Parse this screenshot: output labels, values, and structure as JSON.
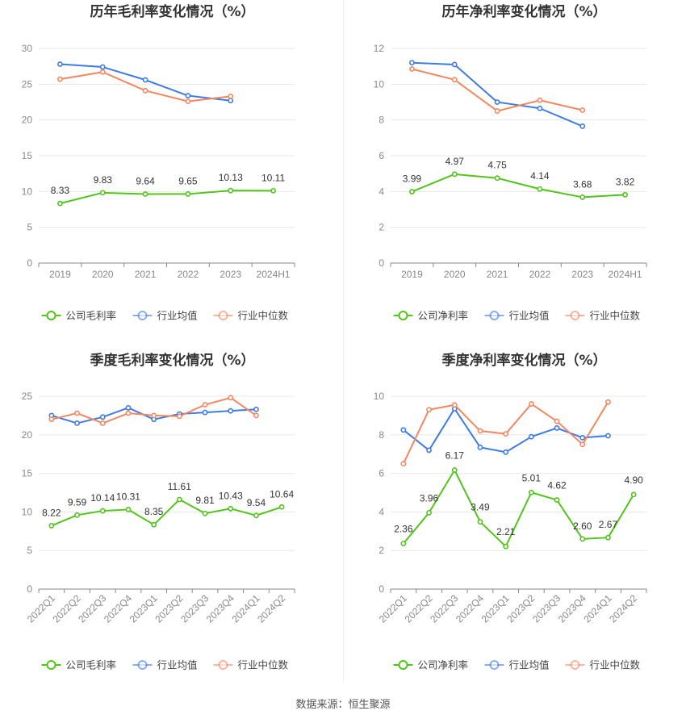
{
  "colors": {
    "company": "#52c41a",
    "industry_avg": "#3e7be6",
    "industry_median": "#f4875f"
  },
  "source_text": "数据来源：恒生聚源",
  "chart_data": [
    {
      "id": "annual-gross",
      "type": "line",
      "title": "历年毛利率变化情况（%）",
      "categories": [
        "2019",
        "2020",
        "2021",
        "2022",
        "2023",
        "2024H1"
      ],
      "ylim": [
        0,
        30
      ],
      "yticks": [
        0,
        5,
        10,
        15,
        20,
        25,
        30
      ],
      "grid": true,
      "legend_position": "bottom",
      "series": [
        {
          "name": "公司毛利率",
          "key": "company",
          "values": [
            8.33,
            9.83,
            9.64,
            9.65,
            10.13,
            10.11
          ],
          "labels": [
            "8.33",
            "9.83",
            "9.64",
            "9.65",
            "10.13",
            "10.11"
          ]
        },
        {
          "name": "行业均值",
          "key": "industry_avg",
          "values": [
            27.8,
            27.4,
            25.6,
            23.4,
            22.7,
            null
          ]
        },
        {
          "name": "行业中位数",
          "key": "industry_median",
          "values": [
            25.7,
            26.7,
            24.1,
            22.6,
            23.3,
            null
          ]
        }
      ]
    },
    {
      "id": "annual-net",
      "type": "line",
      "title": "历年净利率变化情况（%）",
      "categories": [
        "2019",
        "2020",
        "2021",
        "2022",
        "2023",
        "2024H1"
      ],
      "ylim": [
        0,
        12
      ],
      "yticks": [
        0,
        2,
        4,
        6,
        8,
        10,
        12
      ],
      "grid": true,
      "legend_position": "bottom",
      "series": [
        {
          "name": "公司净利率",
          "key": "company",
          "values": [
            3.99,
            4.97,
            4.75,
            4.14,
            3.68,
            3.82
          ],
          "labels": [
            "3.99",
            "4.97",
            "4.75",
            "4.14",
            "3.68",
            "3.82"
          ]
        },
        {
          "name": "行业均值",
          "key": "industry_avg",
          "values": [
            11.2,
            11.1,
            9.0,
            8.65,
            7.65,
            null
          ]
        },
        {
          "name": "行业中位数",
          "key": "industry_median",
          "values": [
            10.85,
            10.25,
            8.5,
            9.1,
            8.55,
            null
          ]
        }
      ]
    },
    {
      "id": "quarterly-gross",
      "type": "line",
      "title": "季度毛利率变化情况（%）",
      "categories": [
        "2022Q1",
        "2022Q2",
        "2022Q3",
        "2022Q4",
        "2023Q1",
        "2023Q2",
        "2023Q3",
        "2023Q4",
        "2024Q1",
        "2024Q2"
      ],
      "ylim": [
        0,
        25
      ],
      "yticks": [
        0,
        5,
        10,
        15,
        20,
        25
      ],
      "grid": true,
      "legend_position": "bottom",
      "series": [
        {
          "name": "公司毛利率",
          "key": "company",
          "values": [
            8.22,
            9.59,
            10.14,
            10.31,
            8.35,
            11.61,
            9.81,
            10.43,
            9.54,
            10.64
          ],
          "labels": [
            "8.22",
            "9.59",
            "10.14",
            "10.31",
            "8.35",
            "11.61",
            "9.81",
            "10.43",
            "9.54",
            "10.64"
          ]
        },
        {
          "name": "行业均值",
          "key": "industry_avg",
          "values": [
            22.5,
            21.5,
            22.3,
            23.5,
            22.0,
            22.7,
            22.9,
            23.1,
            23.3,
            null
          ]
        },
        {
          "name": "行业中位数",
          "key": "industry_median",
          "values": [
            22.0,
            22.8,
            21.5,
            22.8,
            22.5,
            22.4,
            23.9,
            24.8,
            22.5,
            null
          ]
        }
      ]
    },
    {
      "id": "quarterly-net",
      "type": "line",
      "title": "季度净利率变化情况（%）",
      "categories": [
        "2022Q1",
        "2022Q2",
        "2022Q3",
        "2022Q4",
        "2023Q1",
        "2023Q2",
        "2023Q3",
        "2023Q4",
        "2024Q1",
        "2024Q2"
      ],
      "ylim": [
        0,
        10
      ],
      "yticks": [
        0,
        2,
        4,
        6,
        8,
        10
      ],
      "grid": true,
      "legend_position": "bottom",
      "series": [
        {
          "name": "公司净利率",
          "key": "company",
          "values": [
            2.36,
            3.96,
            6.17,
            3.49,
            2.21,
            5.01,
            4.62,
            2.6,
            2.67,
            4.9
          ],
          "labels": [
            "2.36",
            "3.96",
            "6.17",
            "3.49",
            "2.21",
            "5.01",
            "4.62",
            "2.60",
            "2.67",
            "4.90"
          ]
        },
        {
          "name": "行业均值",
          "key": "industry_avg",
          "values": [
            8.25,
            7.2,
            9.35,
            7.35,
            7.1,
            7.9,
            8.35,
            7.85,
            7.95,
            null
          ]
        },
        {
          "name": "行业中位数",
          "key": "industry_median",
          "values": [
            6.5,
            9.3,
            9.55,
            8.2,
            8.05,
            9.6,
            8.7,
            7.5,
            9.7,
            null
          ]
        }
      ]
    }
  ]
}
